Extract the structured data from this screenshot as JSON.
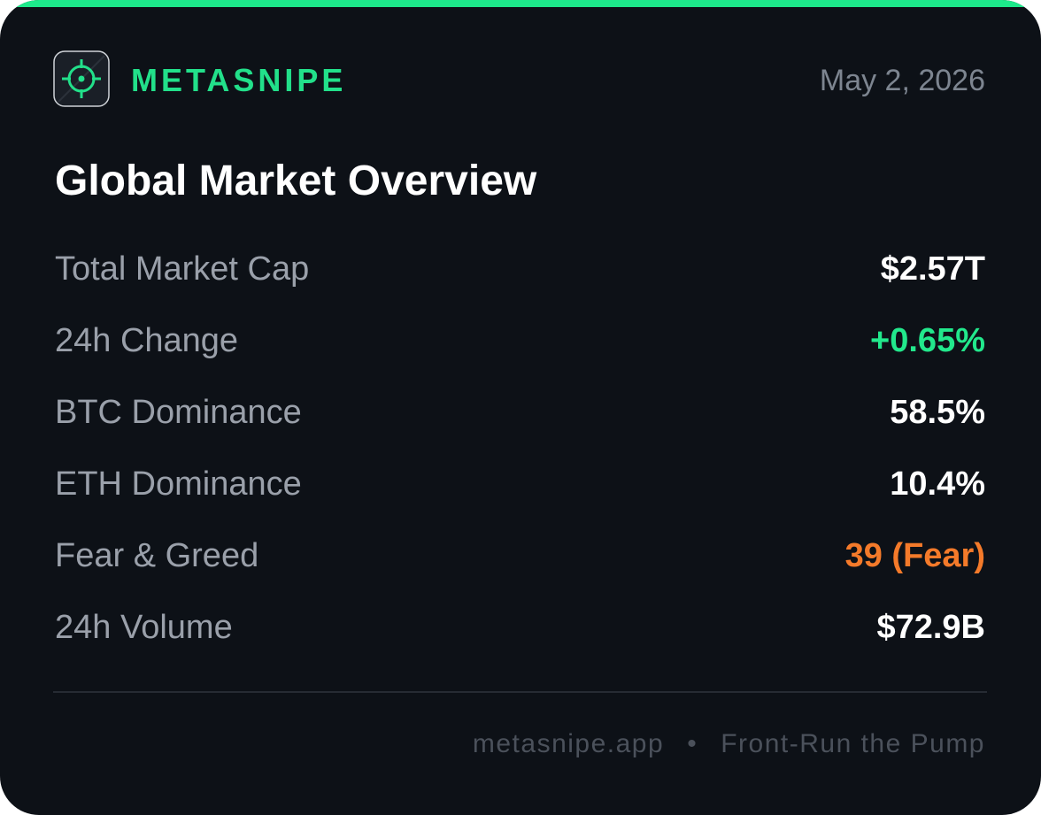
{
  "header": {
    "brand": "METASNIPE",
    "date": "May 2, 2026"
  },
  "title": "Global Market Overview",
  "rows": [
    {
      "label": "Total Market Cap",
      "value": "$2.57T",
      "color": "#ffffff"
    },
    {
      "label": "24h Change",
      "value": "+0.65%",
      "color": "#22e88c"
    },
    {
      "label": "BTC Dominance",
      "value": "58.5%",
      "color": "#ffffff"
    },
    {
      "label": "ETH Dominance",
      "value": "10.4%",
      "color": "#ffffff"
    },
    {
      "label": "Fear & Greed",
      "value": "39 (Fear)",
      "color": "#f47a2a"
    },
    {
      "label": "24h Volume",
      "value": "$72.9B",
      "color": "#ffffff"
    }
  ],
  "footer": {
    "site": "metasnipe.app",
    "separator": "•",
    "tagline": "Front-Run the Pump"
  }
}
